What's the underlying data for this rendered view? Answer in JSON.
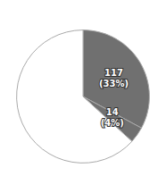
{
  "chart_data": {
    "type": "pie",
    "values": [
      117,
      14,
      225
    ],
    "value_labels": [
      "117\n(33%)",
      "14\n(4%)",
      null
    ],
    "colors": [
      "#707070",
      "#707070",
      "white"
    ],
    "data_labels": true
  }
}
